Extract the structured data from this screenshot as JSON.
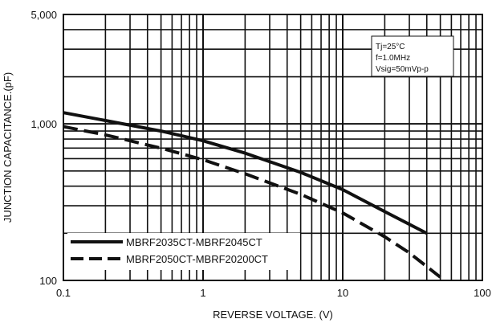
{
  "chart_data": {
    "type": "line",
    "x_scale": "log",
    "y_scale": "log",
    "xlim": [
      0.1,
      100
    ],
    "ylim": [
      100,
      5000
    ],
    "x_ticks": [
      0.1,
      1,
      10,
      100
    ],
    "x_tick_labels": [
      "0.1",
      "1",
      "10",
      "100"
    ],
    "y_ticks": [
      100,
      1000,
      5000
    ],
    "y_tick_labels": [
      "100",
      "1,000",
      "5,000"
    ],
    "xlabel": "REVERSE VOLTAGE. (V)",
    "ylabel": "JUNCTION CAPACITANCE.(pF)",
    "grid": true,
    "legend_position": "bottom-left",
    "conditions": [
      "Tj=25°C",
      "f=1.0MHz",
      "Vsig=50mVp-p"
    ],
    "series": [
      {
        "name": "MBRF2035CT-MBRF2045CT",
        "style": "solid",
        "x": [
          0.1,
          0.2,
          0.5,
          1,
          2,
          5,
          10,
          20,
          40
        ],
        "y": [
          1180,
          1050,
          900,
          780,
          650,
          490,
          380,
          275,
          200
        ]
      },
      {
        "name": "MBRF2050CT-MBRF20200CT",
        "style": "dashed",
        "x": [
          0.1,
          0.2,
          0.5,
          1,
          2,
          5,
          10,
          20,
          30,
          50
        ],
        "y": [
          960,
          850,
          700,
          590,
          480,
          355,
          270,
          190,
          150,
          105
        ]
      }
    ]
  }
}
